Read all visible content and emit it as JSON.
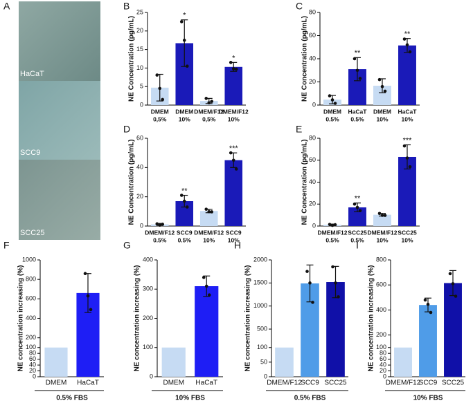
{
  "panel_a": {
    "label": "A",
    "images": [
      "HaCaT",
      "SCC9",
      "SCC25"
    ]
  },
  "chart_data": [
    {
      "type": "bar",
      "panel": "B",
      "ylabel": "NE Concentration (pg/mL)",
      "ylim": [
        0,
        25
      ],
      "yticks": [
        0,
        5,
        10,
        15,
        20,
        25
      ],
      "categories": [
        [
          "DMEM",
          "0,5%"
        ],
        [
          "DMEM",
          "10%"
        ],
        [
          "DMEM/F12",
          "0,5%"
        ],
        [
          "DMEM/F12",
          "10%"
        ]
      ],
      "values": [
        4.7,
        16.7,
        1.1,
        10.3
      ],
      "errors": [
        3.6,
        6.3,
        0.7,
        1.2
      ],
      "points": [
        [
          8.1,
          4.5,
          1.5
        ],
        [
          22.5,
          17.5,
          10.5
        ],
        [
          1.8,
          0.6,
          1.0
        ],
        [
          11.5,
          9.8,
          9.7
        ]
      ],
      "annotations": [
        null,
        "*",
        null,
        "*"
      ],
      "colors": [
        "#c6dbf3",
        "#1a1ab8",
        "#c6dbf3",
        "#1a1ab8"
      ]
    },
    {
      "type": "bar",
      "panel": "C",
      "ylabel": "NE Concentration (pg/mL)",
      "ylim": [
        0,
        80
      ],
      "yticks": [
        0,
        20,
        40,
        60,
        80
      ],
      "categories": [
        [
          "DMEM",
          "0.5%"
        ],
        [
          "HaCaT",
          "0.5%"
        ],
        [
          "DMEM",
          "10%"
        ],
        [
          "HaCaT",
          "10%"
        ]
      ],
      "values": [
        4.7,
        31,
        16.7,
        51.5
      ],
      "errors": [
        3.6,
        10,
        6,
        6
      ],
      "points": [
        [
          8,
          4.5,
          1.5
        ],
        [
          40,
          30,
          23
        ],
        [
          22,
          16,
          12
        ],
        [
          57,
          52,
          46
        ]
      ],
      "annotations": [
        null,
        "**",
        null,
        "**"
      ],
      "colors": [
        "#c6dbf3",
        "#1a1ab8",
        "#c6dbf3",
        "#1a1ab8"
      ]
    },
    {
      "type": "bar",
      "panel": "D",
      "ylabel": "NE Concentration (pg/mL)",
      "ylim": [
        0,
        60
      ],
      "yticks": [
        0,
        20,
        40,
        60
      ],
      "categories": [
        [
          "DMEM/F12",
          "0.5%"
        ],
        [
          "SCC9",
          "0.5%"
        ],
        [
          "DMEM/F12",
          "10%"
        ],
        [
          "SCC9",
          "10%"
        ]
      ],
      "values": [
        1.1,
        17,
        10.3,
        45
      ],
      "errors": [
        0.7,
        4,
        1.2,
        5
      ],
      "points": [
        [
          1.5,
          0.6,
          1.2
        ],
        [
          21,
          17,
          13
        ],
        [
          11.5,
          9.8,
          9.7
        ],
        [
          50,
          45,
          39
        ]
      ],
      "annotations": [
        null,
        "**",
        null,
        "***"
      ],
      "colors": [
        "#c6dbf3",
        "#1a1ab8",
        "#c6dbf3",
        "#1a1ab8"
      ]
    },
    {
      "type": "bar",
      "panel": "E",
      "ylabel": "NE Concentration (pg/mL)",
      "ylim": [
        0,
        80
      ],
      "yticks": [
        0,
        20,
        40,
        60,
        80
      ],
      "categories": [
        [
          "DMEM/F12",
          "0.5%"
        ],
        [
          "SCC25",
          "0.5%"
        ],
        [
          "DMEM/F12",
          "10%"
        ],
        [
          "SCC25",
          "10%"
        ]
      ],
      "values": [
        1.1,
        17,
        10.3,
        63
      ],
      "errors": [
        0.7,
        4,
        1.2,
        11
      ],
      "points": [
        [
          1.5,
          0.6,
          1.2
        ],
        [
          20,
          17,
          14
        ],
        [
          11.5,
          9.8,
          9.7
        ],
        [
          73,
          62,
          54
        ]
      ],
      "annotations": [
        null,
        "**",
        null,
        "***"
      ],
      "colors": [
        "#c6dbf3",
        "#1a1ab8",
        "#c6dbf3",
        "#1a1ab8"
      ]
    },
    {
      "type": "bar",
      "panel": "F",
      "ylabel": "NE concentration increasing (%)",
      "ylim": [
        0,
        1000
      ],
      "ybreak": 100,
      "yticks": [
        0,
        20,
        40,
        60,
        80,
        100,
        200,
        400,
        600,
        800,
        1000
      ],
      "categories": [
        "DMEM",
        "HaCaT"
      ],
      "values": [
        100,
        660
      ],
      "errors": [
        null,
        200
      ],
      "points": [
        null,
        [
          860,
          630,
          490
        ]
      ],
      "group": "0.5% FBS",
      "colors": [
        "#c6dbf3",
        "#1e1ef5"
      ]
    },
    {
      "type": "bar",
      "panel": "G",
      "ylabel": "NE concentration increasing (%)",
      "ylim": [
        0,
        400
      ],
      "yticks": [
        0,
        100,
        200,
        300,
        400
      ],
      "categories": [
        "DMEM",
        "HaCaT"
      ],
      "values": [
        100,
        310
      ],
      "errors": [
        null,
        35
      ],
      "points": [
        null,
        [
          340,
          310,
          280
        ]
      ],
      "group": "10% FBS",
      "colors": [
        "#c6dbf3",
        "#1e1ef5"
      ]
    },
    {
      "type": "bar",
      "panel": "H",
      "ylabel": "NE concentration increasing (%)",
      "ylim": [
        0,
        2000
      ],
      "ybreak": 100,
      "yticks": [
        0,
        50,
        100,
        500,
        {
          "value": 1000,
          "label": "1000"
        },
        1500,
        2000
      ],
      "categories": [
        "DMEM/F12",
        "SCC9",
        "SCC25"
      ],
      "values": [
        100,
        1490,
        1520
      ],
      "errors": [
        null,
        400,
        340
      ],
      "points": [
        null,
        [
          1750,
          1500,
          1080
        ],
        [
          1850,
          1500,
          1200
        ]
      ],
      "group": "0.5% FBS",
      "colors": [
        "#c6dbf3",
        "#4f9ce8",
        "#1010a8"
      ]
    },
    {
      "type": "bar",
      "panel": "I",
      "ylabel": "NE concentration increasing (%)",
      "ylim": [
        0,
        800
      ],
      "ybreak": 100,
      "yticks": [
        0,
        20,
        40,
        60,
        80,
        100,
        200,
        400,
        600,
        800
      ],
      "categories": [
        "DMEM/F12",
        "SCC9",
        "SCC25"
      ],
      "values": [
        100,
        440,
        615
      ],
      "errors": [
        null,
        55,
        100
      ],
      "points": [
        null,
        [
          480,
          445,
          380
        ],
        [
          690,
          610,
          510
        ]
      ],
      "group": "10% FBS",
      "colors": [
        "#c6dbf3",
        "#4f9ce8",
        "#1010a8"
      ]
    }
  ]
}
